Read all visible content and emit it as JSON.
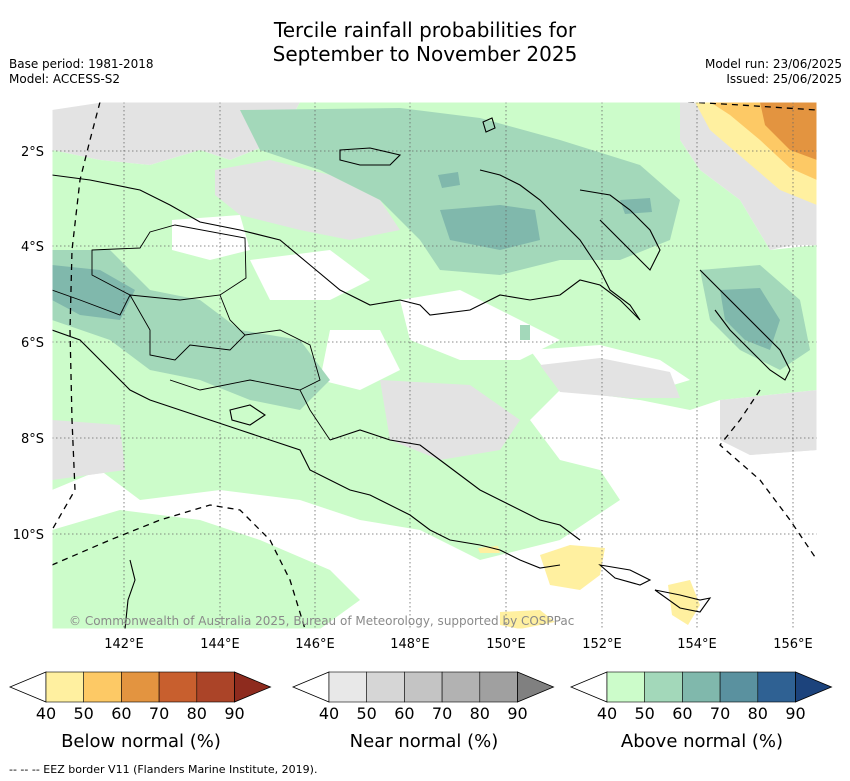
{
  "title_line1": "Tercile rainfall probabilities for",
  "title_line2": "September to November 2025",
  "base_period": "Base period: 1981-2018",
  "model": "Model: ACCESS-S2",
  "model_run": "Model run: 23/06/2025",
  "issued": "Issued: 25/06/2025",
  "copyright": "© Commonwealth of Australia 2025, Bureau of Meteorology, supported by COSPPac",
  "footer": "--  --  -- EEZ border V11 (Flanders Marine Institute, 2019).",
  "lon_labels": [
    "142°E",
    "144°E",
    "146°E",
    "148°E",
    "150°E",
    "152°E",
    "154°E",
    "156°E"
  ],
  "lat_labels": [
    "2°S",
    "4°S",
    "6°S",
    "8°S",
    "10°S"
  ],
  "colorbars": [
    {
      "label": "Below normal (%)",
      "ticks": [
        "40",
        "50",
        "60",
        "70",
        "80",
        "90"
      ],
      "colors": [
        "#fff0a0",
        "#fdc965",
        "#e39440",
        "#c85f2e",
        "#ab4428",
        "#8e2b1e"
      ]
    },
    {
      "label": "Near normal (%)",
      "ticks": [
        "40",
        "50",
        "60",
        "70",
        "80",
        "90"
      ],
      "colors": [
        "#e8e8e8",
        "#d6d6d6",
        "#c4c4c4",
        "#b2b2b2",
        "#a0a0a0",
        "#808080"
      ]
    },
    {
      "label": "Above normal (%)",
      "ticks": [
        "40",
        "50",
        "60",
        "70",
        "80",
        "90"
      ],
      "colors": [
        "#ccfcca",
        "#a3d8ba",
        "#80b8ac",
        "#5a919f",
        "#2f6193",
        "#1c437c"
      ]
    }
  ]
}
